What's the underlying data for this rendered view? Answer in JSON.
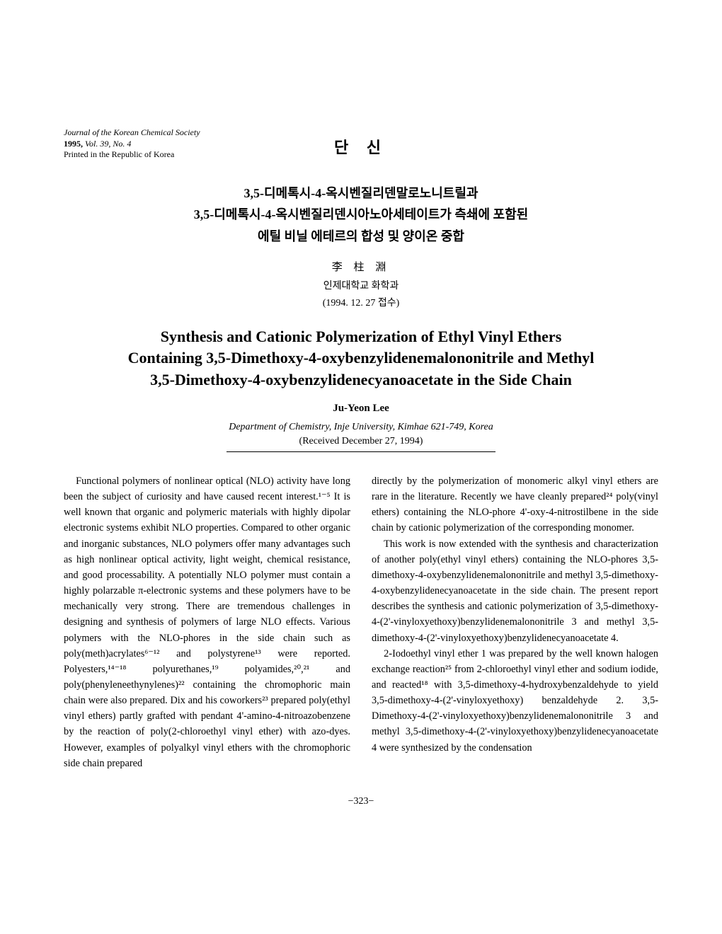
{
  "journal": {
    "name": "Journal of the Korean Chemical Society",
    "year_vol": "1995,",
    "vol": "Vol. 39, No. 4",
    "printed": "Printed in the Republic of Korea"
  },
  "category": "단  신",
  "korean_title_1": "3,5-디메톡시-4-옥시벤질리덴말로노니트릴과",
  "korean_title_2": "3,5-디메톡시-4-옥시벤질리덴시아노아세테이트가 측쇄에 포함된",
  "korean_title_3": "에틸 비닐 에테르의 합성 및 양이온 중합",
  "korean_author": "李 柱 淵",
  "korean_affiliation": "인제대학교 화학과",
  "korean_date": "(1994. 12. 27 접수)",
  "english_title_1": "Synthesis and Cationic Polymerization of Ethyl Vinyl Ethers",
  "english_title_2": "Containing 3,5-Dimethoxy-4-oxybenzylidenemalononitrile and Methyl",
  "english_title_3": "3,5-Dimethoxy-4-oxybenzylidenecyanoacetate in the Side Chain",
  "english_author": "Ju-Yeon Lee",
  "english_affiliation": "Department of Chemistry, Inje University, Kimhae 621-749, Korea",
  "english_date": "(Received December 27, 1994)",
  "body_left": "Functional polymers of nonlinear optical (NLO) activity have long been the subject of curiosity and have caused recent interest.¹⁻⁵ It is well known that organic and polymeric materials with highly dipolar electronic systems exhibit NLO properties. Compared to other organic and inorganic substances, NLO polymers offer many advantages such as high nonlinear optical activity, light weight, chemical resistance, and good processability. A potentially NLO polymer must contain a highly polarzable π-electronic systems and these polymers have to be mechanically very strong. There are tremendous challenges in designing and synthesis of polymers of large NLO effects. Various polymers with the NLO-phores in the side chain such as poly(meth)acrylates⁶⁻¹² and polystyrene¹³ were reported. Polyesters,¹⁴⁻¹⁸ polyurethanes,¹⁹ polyamides,²⁰,²¹ and poly(phenyleneethynylenes)²² containing the chromophoric main chain were also prepared. Dix and his coworkers²³ prepared poly(ethyl vinyl ethers) partly grafted with pendant 4'-amino-4-nitroazobenzene by the reaction of poly(2-chloroethyl vinyl ether) with azo-dyes. However, examples of polyalkyl vinyl ethers with the chromophoric side chain prepared",
  "body_right_p1": "directly by the polymerization of monomeric alkyl vinyl ethers are rare in the literature. Recently we have cleanly prepared²⁴ poly(vinyl ethers) containing the NLO-phore 4'-oxy-4-nitrostilbene in the side chain by cationic polymerization of the corresponding monomer.",
  "body_right_p2": "This work is now extended with the synthesis and characterization of another poly(ethyl vinyl ethers) containing the NLO-phores 3,5-dimethoxy-4-oxybenzylidenemalononitrile and methyl 3,5-dimethoxy-4-oxybenzylidenecyanoacetate in the side chain. The present report describes the synthesis and cationic polymerization of 3,5-dimethoxy-4-(2'-vinyloxyethoxy)benzylidenemalononitrile 3 and methyl 3,5-dimethoxy-4-(2'-vinyloxyethoxy)benzylidenecyanoacetate 4.",
  "body_right_p3": "2-Iodoethyl vinyl ether 1 was prepared by the well known halogen exchange reaction²⁵ from 2-chloroethyl vinyl ether and sodium iodide, and reacted¹⁸ with 3,5-dimethoxy-4-hydroxybenzaldehyde to yield 3,5-dimethoxy-4-(2'-vinyloxyethoxy) benzaldehyde 2. 3,5-Dimethoxy-4-(2'-vinyloxyethoxy)benzylidenemalononitrile 3 and methyl 3,5-dimethoxy-4-(2'-vinyloxyethoxy)benzylidenecyanoacetate 4 were synthesized by the condensation",
  "page_number": "−323−"
}
